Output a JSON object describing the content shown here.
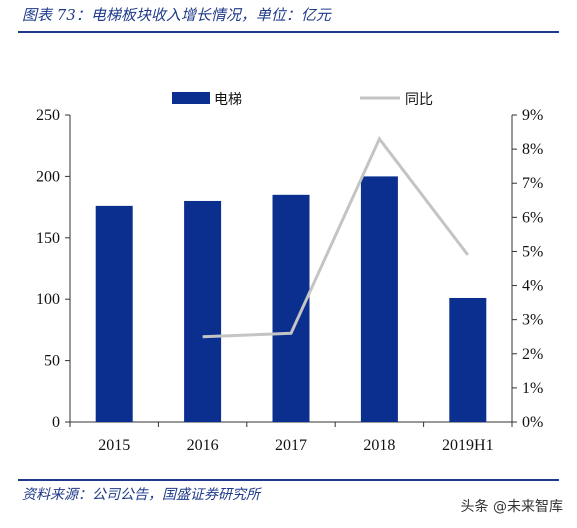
{
  "header": {
    "caption": "图表 73：电梯板块收入增长情况，单位：亿元"
  },
  "footer": {
    "source": "资料来源：公司公告，国盛证券研究所",
    "watermark": "头条 @未来智库"
  },
  "colors": {
    "bar": "#0b2f8f",
    "line": "#c4c4c4",
    "caption": "#1f3a8a"
  },
  "chart_data": {
    "type": "bar",
    "categories": [
      "2015",
      "2016",
      "2017",
      "2018",
      "2019H1"
    ],
    "series": [
      {
        "name": "电梯",
        "type": "bar",
        "axis": "left",
        "values": [
          176,
          180,
          185,
          200,
          101
        ]
      },
      {
        "name": "同比",
        "type": "line",
        "axis": "right",
        "values": [
          null,
          2.5,
          2.6,
          8.3,
          4.9
        ]
      }
    ],
    "yleft": {
      "ylim": [
        0,
        250
      ],
      "ticks": [
        "0",
        "50",
        "100",
        "150",
        "200",
        "250"
      ]
    },
    "yright": {
      "ylim": [
        0,
        9
      ],
      "ticks": [
        "0%",
        "1%",
        "2%",
        "3%",
        "4%",
        "5%",
        "6%",
        "7%",
        "8%",
        "9%"
      ]
    },
    "grid": false,
    "legend": "top"
  }
}
